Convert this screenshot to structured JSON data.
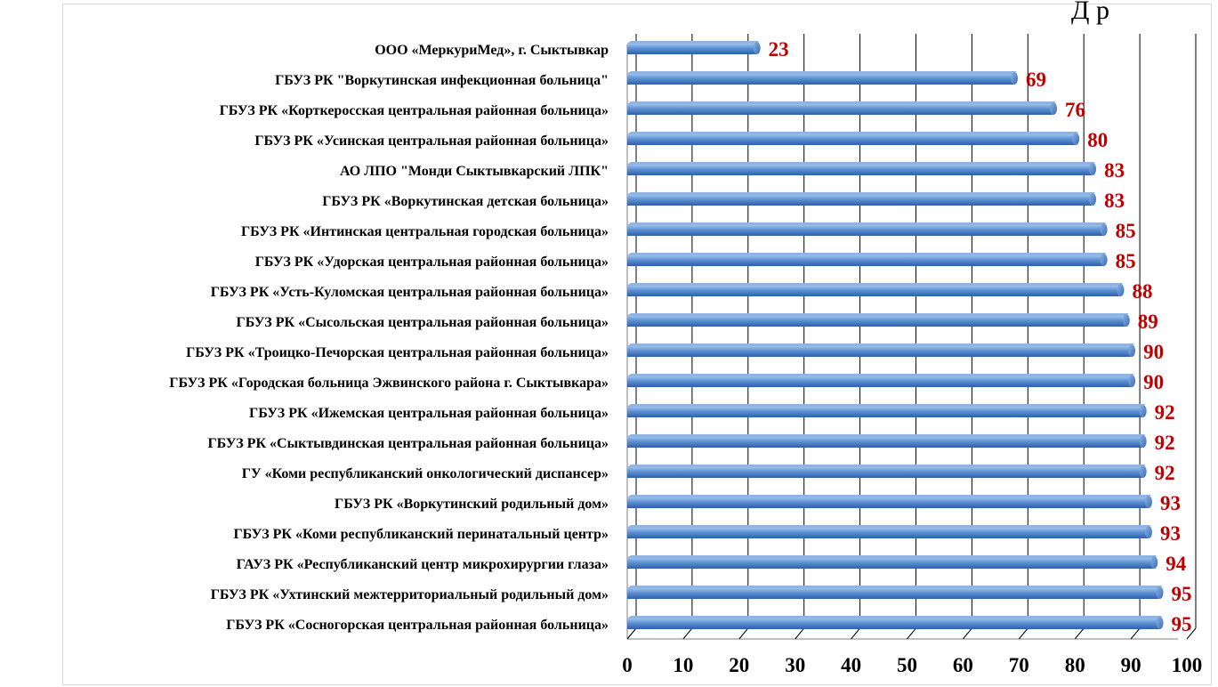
{
  "corner_text": "Д  р",
  "chart_data": {
    "type": "bar",
    "orientation": "horizontal",
    "categories": [
      "ООО «МеркуриМед», г. Сыктывкар",
      "ГБУЗ РК \"Воркутинская инфекционная больница\"",
      "ГБУЗ РК «Корткеросская центральная районная больница»",
      "ГБУЗ РК «Усинская центральная районная больница»",
      "АО ЛПО \"Монди Сыктывкарский ЛПК\"",
      "ГБУЗ РК «Воркутинская детская больница»",
      "ГБУЗ РК «Интинская центральная городская больница»",
      "ГБУЗ РК «Удорская центральная районная больница»",
      "ГБУЗ РК «Усть-Куломская центральная районная больница»",
      "ГБУЗ РК «Сысольская центральная районная больница»",
      "ГБУЗ РК «Троицко-Печорская центральная районная больница»",
      "ГБУЗ РК «Городская больница Эжвинского района г. Сыктывкара»",
      "ГБУЗ РК «Ижемская центральная районная больница»",
      "ГБУЗ РК «Сыктывдинская центральная районная больница»",
      "ГУ «Коми республиканский онкологический диспансер»",
      "ГБУЗ РК «Воркутинский родильный дом»",
      "ГБУЗ РК «Коми республиканский перинатальный центр»",
      "ГАУЗ РК «Республиканский центр микрохирургии глаза»",
      "ГБУЗ РК «Ухтинский межтерриториальный родильный дом»",
      "ГБУЗ РК «Сосногорская центральная районная больница»"
    ],
    "values": [
      23,
      69,
      76,
      80,
      83,
      83,
      85,
      85,
      88,
      89,
      90,
      90,
      92,
      92,
      92,
      93,
      93,
      94,
      95,
      95
    ],
    "x_ticks": [
      "0",
      "10",
      "20",
      "30",
      "40",
      "50",
      "60",
      "70",
      "80",
      "90",
      "100"
    ],
    "xlim": [
      0,
      100
    ],
    "title": "",
    "xlabel": "",
    "ylabel": "",
    "grid": "vertical",
    "legend": "none",
    "colors": {
      "bar": "#4f81bd",
      "bar_light": "#8db4e2",
      "bar_dark": "#2f5597",
      "value_label": "#c00000",
      "grid": "#000000"
    }
  }
}
